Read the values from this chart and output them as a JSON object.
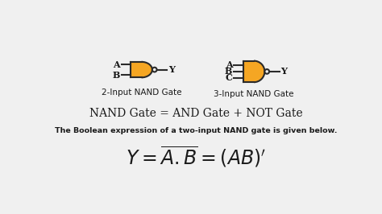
{
  "bg_color": "#f0f0f0",
  "gate_fill": "#f5a623",
  "gate_edge": "#2a2a2a",
  "line_color": "#2a2a2a",
  "text_color": "#1a1a1a",
  "label_2input": "2-Input NAND Gate",
  "label_3input": "3-Input NAND Gate",
  "equation1": "NAND Gate = AND Gate + NOT Gate",
  "equation2_desc": "The Boolean expression of a two-input NAND gate is given below."
}
